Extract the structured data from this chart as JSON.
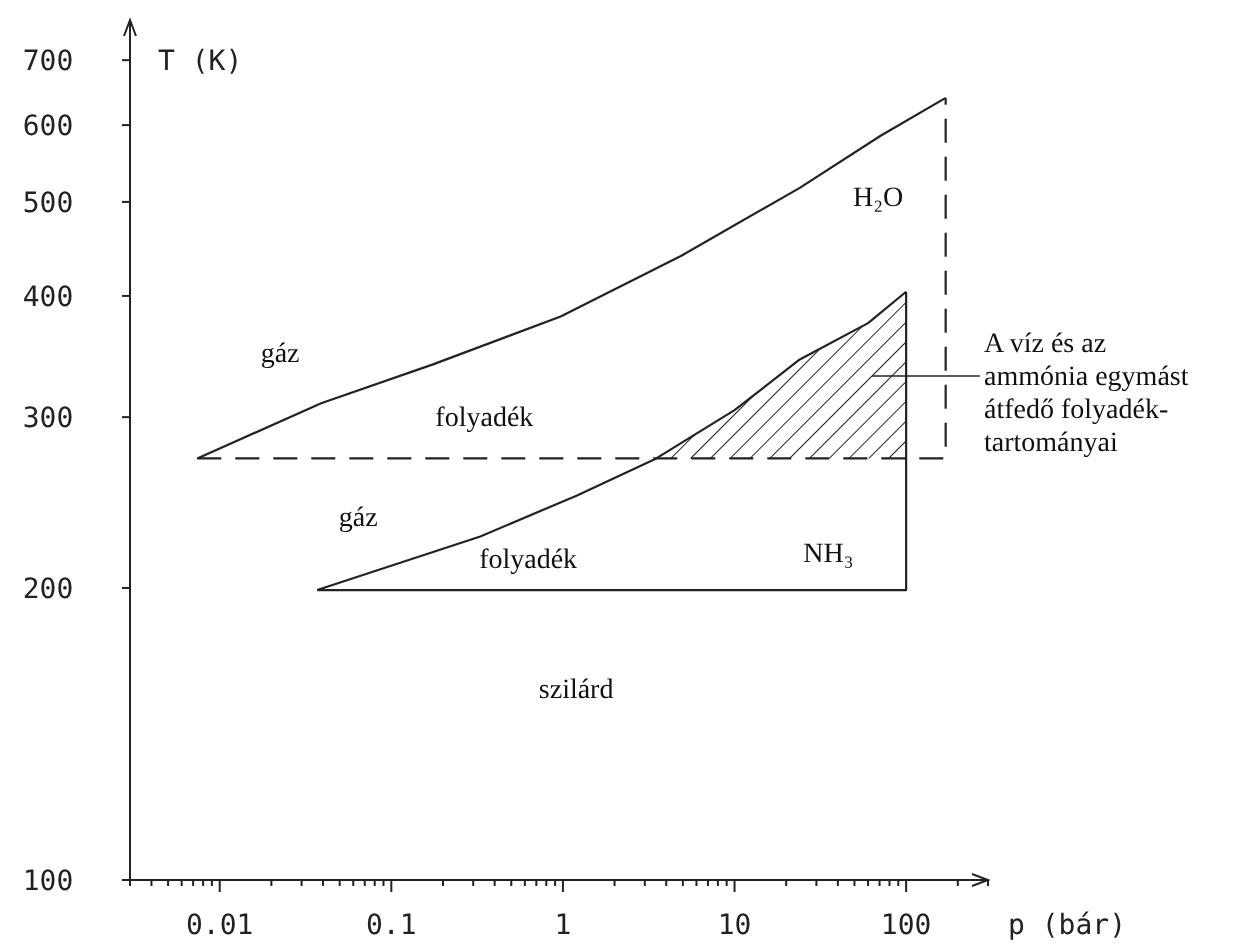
{
  "chart_data": {
    "type": "line",
    "xlabel": "p (bár)",
    "ylabel": "T (K)",
    "log": "xy",
    "grid": false,
    "marker": "none",
    "xlim": [
      0.003,
      300
    ],
    "ylim": [
      100,
      770
    ],
    "xticks": [
      {
        "value": 0.003,
        "label": null
      },
      {
        "value": 0.004,
        "label": null
      },
      {
        "value": 0.005,
        "label": null
      },
      {
        "value": 0.006,
        "label": null
      },
      {
        "value": 0.007,
        "label": null
      },
      {
        "value": 0.008,
        "label": null
      },
      {
        "value": 0.009,
        "label": null
      },
      0.01,
      {
        "value": 0.02,
        "label": null
      },
      {
        "value": 0.03,
        "label": null
      },
      {
        "value": 0.04,
        "label": null
      },
      {
        "value": 0.05,
        "label": null
      },
      {
        "value": 0.06,
        "label": null
      },
      {
        "value": 0.07,
        "label": null
      },
      {
        "value": 0.08,
        "label": null
      },
      {
        "value": 0.09,
        "label": null
      },
      0.1,
      {
        "value": 0.2,
        "label": null
      },
      {
        "value": 0.3,
        "label": null
      },
      {
        "value": 0.4,
        "label": null
      },
      {
        "value": 0.5,
        "label": null
      },
      {
        "value": 0.6,
        "label": null
      },
      {
        "value": 0.7,
        "label": null
      },
      {
        "value": 0.8,
        "label": null
      },
      {
        "value": 0.9,
        "label": null
      },
      1,
      {
        "value": 2,
        "label": null
      },
      {
        "value": 3,
        "label": null
      },
      {
        "value": 4,
        "label": null
      },
      {
        "value": 5,
        "label": null
      },
      {
        "value": 6,
        "label": null
      },
      {
        "value": 7,
        "label": null
      },
      {
        "value": 8,
        "label": null
      },
      {
        "value": 9,
        "label": null
      },
      10,
      {
        "value": 20,
        "label": null
      },
      {
        "value": 30,
        "label": null
      },
      {
        "value": 40,
        "label": null
      },
      {
        "value": 50,
        "label": null
      },
      {
        "value": 60,
        "label": null
      },
      {
        "value": 70,
        "label": null
      },
      {
        "value": 80,
        "label": null
      },
      {
        "value": 90,
        "label": null
      },
      100,
      {
        "value": 200,
        "label": null
      },
      {
        "value": 300,
        "label": null
      }
    ],
    "yticks": [
      100,
      200,
      300,
      400,
      500,
      600,
      700
    ],
    "series": [
      {
        "color": "#222222",
        "line_style": "solid",
        "x": [
          0.0074,
          0.039,
          0.175,
          0.97,
          4.9,
          24,
          71,
          170
        ],
        "values": [
          272,
          310,
          340,
          381,
          440,
          517,
          585,
          640
        ]
      },
      {
        "color": "#222222",
        "line_style": "dashed",
        "x": [
          0.0074,
          170,
          170
        ],
        "values": [
          272,
          272,
          640
        ]
      },
      {
        "color": "#222222",
        "line_style": "solid",
        "x": [
          0.037,
          0.33,
          1.2,
          3.5,
          10,
          24,
          60,
          100
        ],
        "values": [
          199,
          226,
          249,
          272,
          305,
          344,
          375,
          404
        ]
      },
      {
        "color": "#222222",
        "line_style": "solid",
        "x": [
          0.037,
          100,
          100
        ],
        "values": [
          199,
          199,
          404
        ]
      }
    ],
    "annotations": [
      "gáz",
      "folyadék",
      "H₂O",
      "gáz",
      "folyadék",
      "NH₃",
      "szilárd",
      "A víz és az ammónia egymást átfedő folyadék-tartományai"
    ]
  }
}
